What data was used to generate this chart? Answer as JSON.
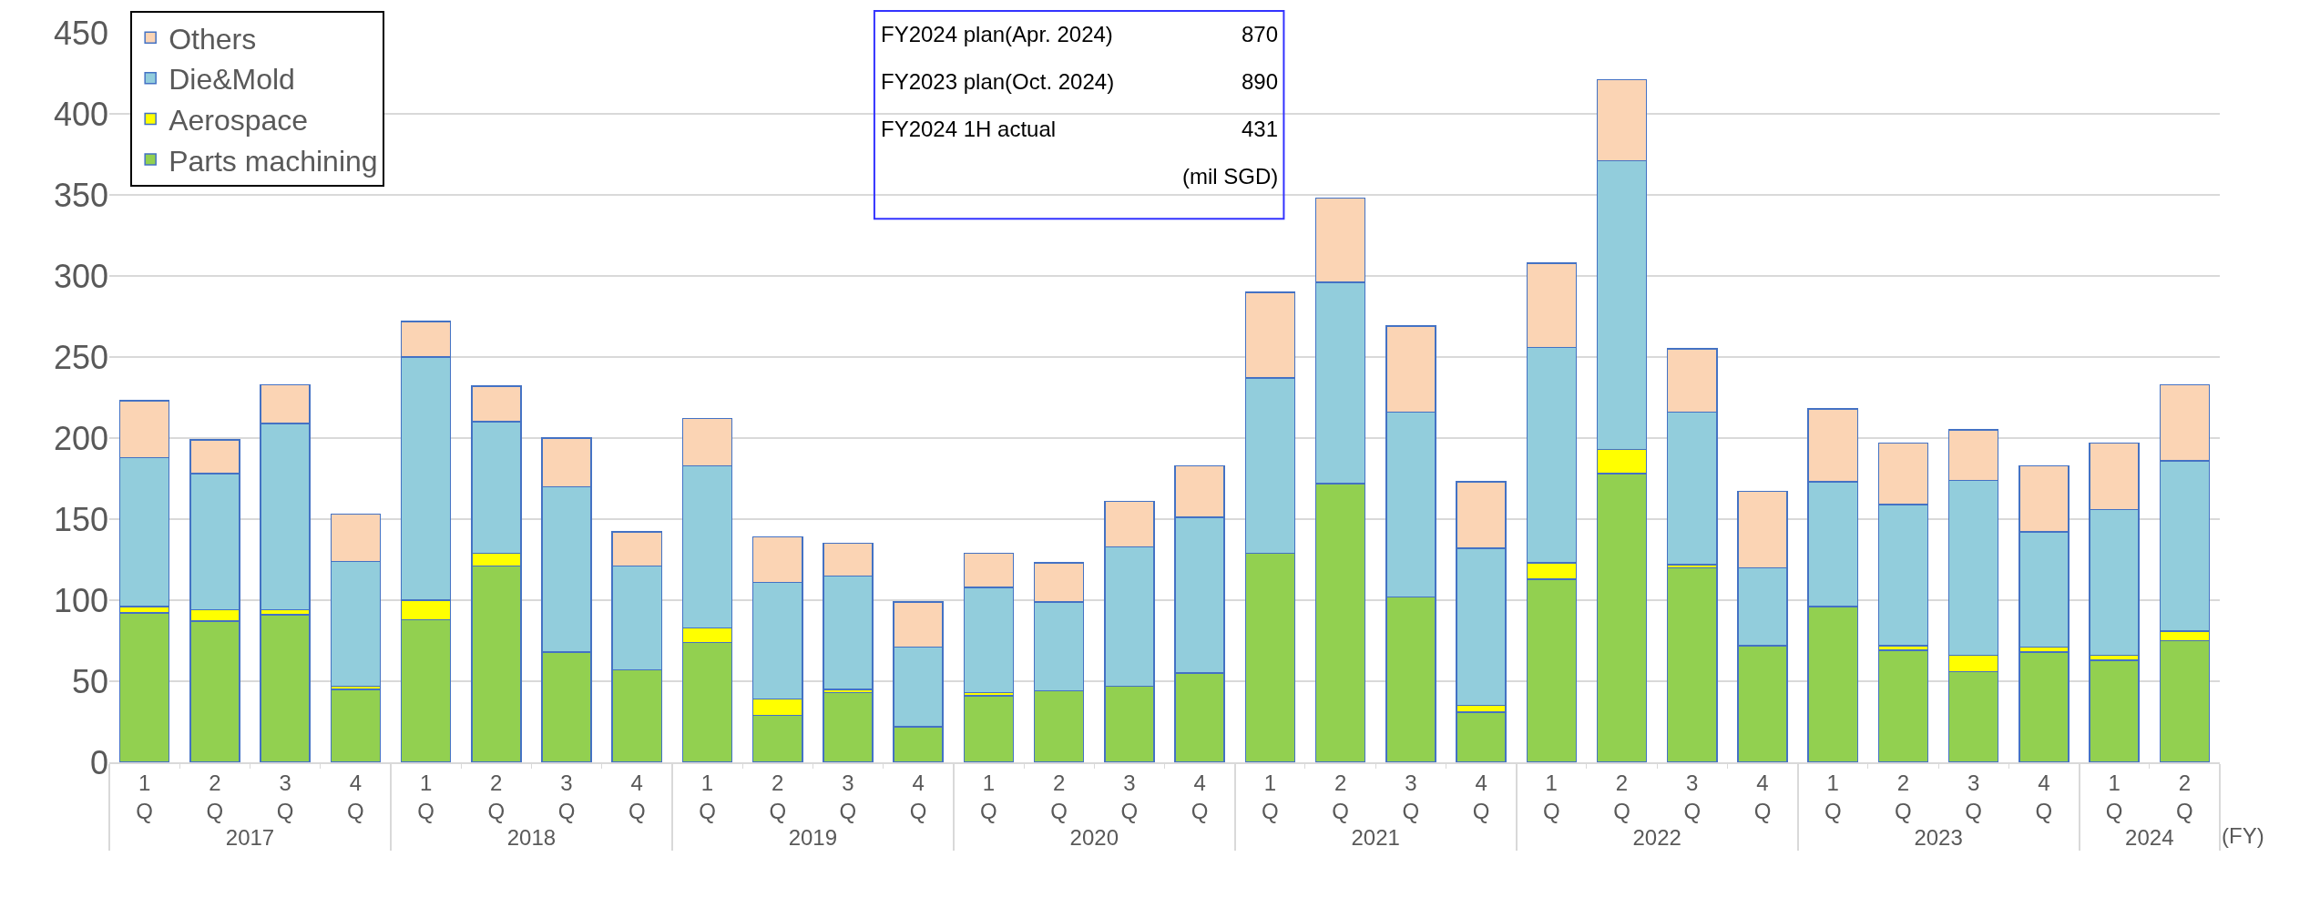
{
  "chart_data": {
    "type": "bar",
    "stacked": true,
    "categories": [
      "1\nQ",
      "2\nQ",
      "3\nQ",
      "4\nQ",
      "1\nQ",
      "2\nQ",
      "3\nQ",
      "4\nQ",
      "1\nQ",
      "2\nQ",
      "3\nQ",
      "4\nQ",
      "1\nQ",
      "2\nQ",
      "3\nQ",
      "4\nQ",
      "1\nQ",
      "2\nQ",
      "3\nQ",
      "4\nQ",
      "1\nQ",
      "2\nQ",
      "3\nQ",
      "4\nQ",
      "1\nQ",
      "2\nQ",
      "3\nQ",
      "4\nQ",
      "1\nQ",
      "2\nQ"
    ],
    "series": [
      {
        "name": "Parts machining",
        "color": "#92d050",
        "values": [
          92,
          87,
          91,
          45,
          88,
          121,
          68,
          57,
          74,
          29,
          43,
          22,
          41,
          44,
          47,
          55,
          129,
          172,
          102,
          31,
          113,
          178,
          120,
          72,
          96,
          69,
          56,
          68,
          63,
          75
        ]
      },
      {
        "name": "Aerospace",
        "color": "#ffff00",
        "values": [
          4,
          7,
          3,
          2,
          12,
          8,
          0,
          0,
          9,
          10,
          2,
          0,
          2,
          0,
          0,
          0,
          0,
          0,
          0,
          4,
          10,
          15,
          2,
          0,
          0,
          3,
          10,
          3,
          3,
          6
        ]
      },
      {
        "name": "Die&Mold",
        "color": "#92cddc",
        "values": [
          92,
          84,
          115,
          77,
          150,
          81,
          102,
          64,
          100,
          72,
          70,
          49,
          65,
          55,
          86,
          96,
          108,
          124,
          114,
          97,
          133,
          178,
          94,
          48,
          77,
          87,
          108,
          71,
          90,
          105
        ]
      },
      {
        "name": "Others",
        "color": "#fbd4b4",
        "values": [
          35,
          21,
          24,
          29,
          22,
          22,
          30,
          21,
          29,
          28,
          20,
          28,
          21,
          24,
          28,
          32,
          53,
          52,
          53,
          41,
          52,
          50,
          39,
          47,
          45,
          38,
          31,
          41,
          41,
          47
        ]
      }
    ],
    "ylim": [
      0,
      450
    ],
    "yticks": [
      0,
      50,
      100,
      150,
      200,
      250,
      300,
      350,
      400,
      450
    ],
    "grid": "y",
    "legend": "top left",
    "annotations": [
      "FY2024 plan(Apr. 2024)",
      "870",
      "FY2023 plan(Oct. 2024)",
      "890",
      "FY2024 1H actual",
      "431",
      "(mil SGD)",
      "(FY)",
      "2017",
      "2018",
      "2019",
      "2020",
      "2021",
      "2022",
      "2023",
      "2024"
    ]
  }
}
